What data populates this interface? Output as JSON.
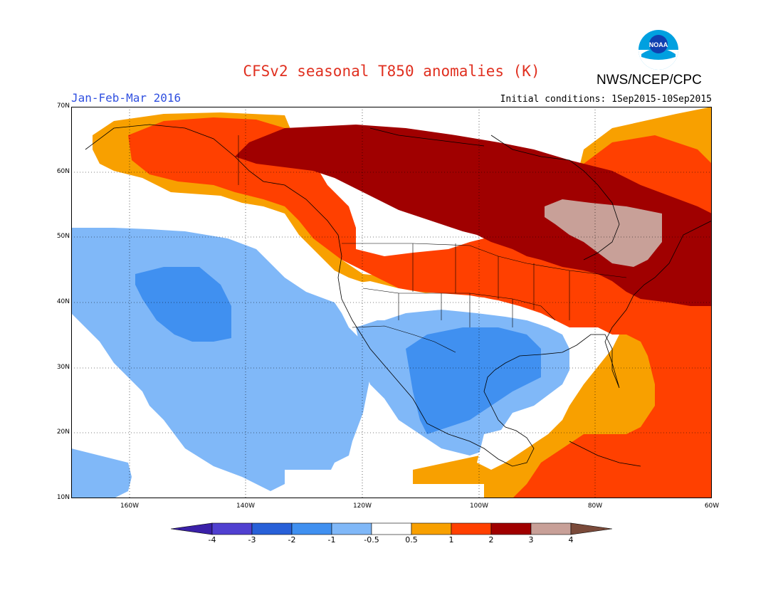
{
  "header": {
    "title": "CFSv2 seasonal T850 anomalies (K)",
    "agency": "NWS/NCEP/CPC",
    "period": "Jan-Feb-Mar 2016",
    "initial_conditions": "Initial conditions: 1Sep2015-10Sep2015",
    "logo_text": "NOAA"
  },
  "axes": {
    "lat_labels": [
      "70N",
      "60N",
      "50N",
      "40N",
      "30N",
      "20N",
      "10N"
    ],
    "lon_labels": [
      "160W",
      "140W",
      "120W",
      "100W",
      "80W",
      "60W"
    ]
  },
  "legend": {
    "labels": [
      "-4",
      "-3",
      "-2",
      "-1",
      "-0.5",
      "0.5",
      "1",
      "2",
      "3",
      "4"
    ],
    "colors": [
      "#3a20a8",
      "#5040d0",
      "#2860d8",
      "#4090f0",
      "#80b8f8",
      "#ffffff",
      "#f8a000",
      "#ff4000",
      "#a00000",
      "#c8a098",
      "#7a4a3a"
    ]
  }
}
